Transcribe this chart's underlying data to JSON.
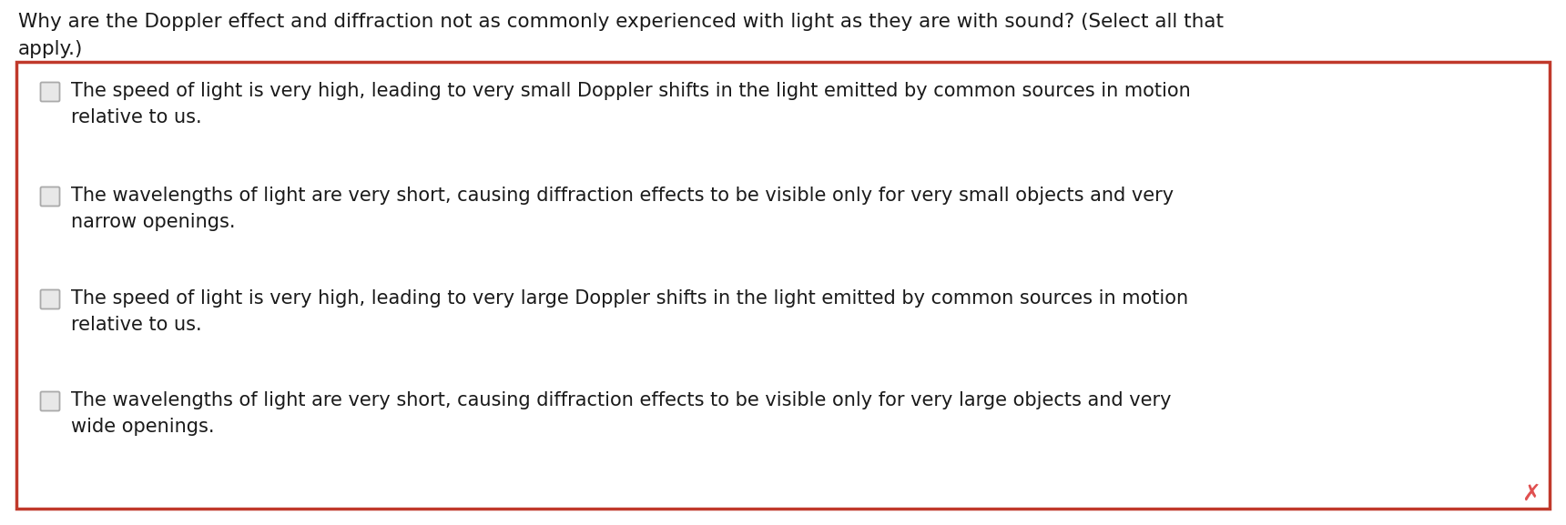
{
  "question_line1": "Why are the Doppler effect and diffraction not as commonly experienced with light as they are with sound? (Select all that",
  "question_line2": "apply.)",
  "options": [
    "The speed of light is very high, leading to very small Doppler shifts in the light emitted by common sources in motion\nrelative to us.",
    "The wavelengths of light are very short, causing diffraction effects to be visible only for very small objects and very\nnarrow openings.",
    "The speed of light is very high, leading to very large Doppler shifts in the light emitted by common sources in motion\nrelative to us.",
    "The wavelengths of light are very short, causing diffraction effects to be visible only for very large objects and very\nwide openings."
  ],
  "bg_color": "#ffffff",
  "question_color": "#1a1a1a",
  "option_color": "#1a1a1a",
  "box_border_color": "#c0392b",
  "checkbox_border_color": "#aaaaaa",
  "checkbox_fill_color": "#e8e8e8",
  "x_mark_color": "#e05050",
  "font_size_question": 15.5,
  "font_size_option": 15.0,
  "fig_width": 17.2,
  "fig_height": 5.77,
  "dpi": 100
}
